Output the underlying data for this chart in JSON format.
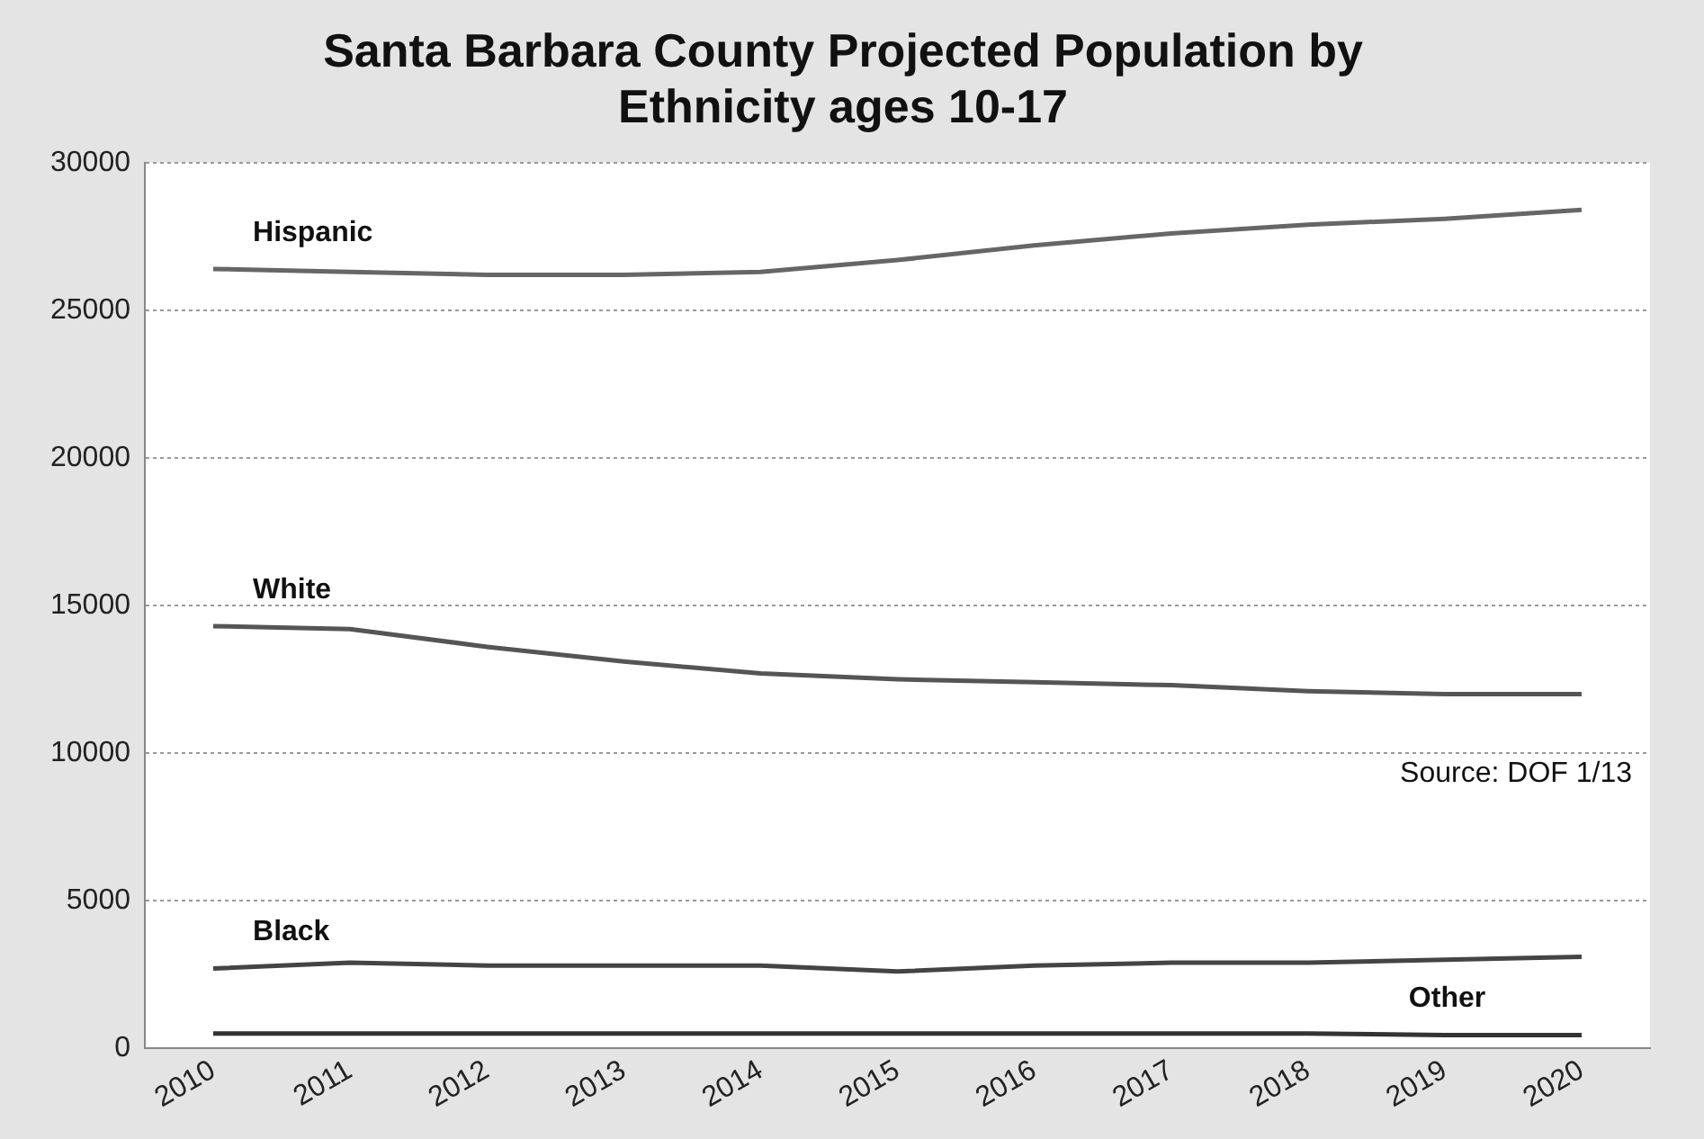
{
  "chart_data": {
    "type": "line",
    "title": [
      "Santa Barbara County Projected Population by",
      "Ethnicity ages 10-17"
    ],
    "categories": [
      "2010",
      "2011",
      "2012",
      "2013",
      "2014",
      "2015",
      "2016",
      "2017",
      "2018",
      "2019",
      "2020"
    ],
    "series": [
      {
        "name": "Hispanic",
        "color": "#666666",
        "values": [
          26400,
          26300,
          26200,
          26200,
          26300,
          26700,
          27200,
          27600,
          27900,
          28100,
          28400
        ]
      },
      {
        "name": "White",
        "color": "#555555",
        "values": [
          14300,
          14200,
          13600,
          13100,
          12700,
          12500,
          12400,
          12300,
          12100,
          12000,
          12000
        ]
      },
      {
        "name": "Black",
        "color": "#444444",
        "values": [
          2700,
          2900,
          2800,
          2800,
          2800,
          2600,
          2800,
          2900,
          2900,
          3000,
          3100
        ]
      },
      {
        "name": "Other",
        "color": "#333333",
        "values": [
          500,
          500,
          500,
          500,
          500,
          500,
          500,
          500,
          500,
          450,
          450
        ]
      }
    ],
    "ylim": [
      0,
      30000
    ],
    "yticks": [
      0,
      5000,
      10000,
      15000,
      20000,
      25000,
      30000
    ],
    "grid": "y",
    "legend": false,
    "marker": "none",
    "line_style": "solid",
    "annotations": [
      "Source: DOF 1/13"
    ]
  }
}
